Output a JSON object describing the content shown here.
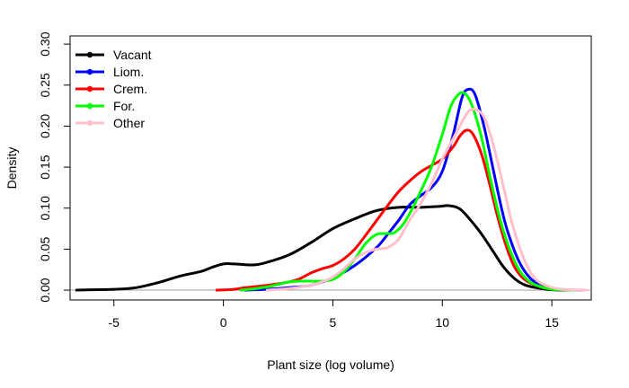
{
  "chart_data": {
    "type": "line",
    "title": "",
    "xlabel": "Plant size (log volume)",
    "ylabel": "Density",
    "xlim": [
      -7.0,
      16.8
    ],
    "ylim": [
      -0.012,
      0.31
    ],
    "x_ticks": [
      -5,
      0,
      5,
      10,
      15
    ],
    "y_ticks": [
      0.0,
      0.05,
      0.1,
      0.15,
      0.2,
      0.25,
      0.3
    ],
    "x_tick_labels": [
      "-5",
      "0",
      "5",
      "10",
      "15"
    ],
    "y_tick_labels": [
      "0.00",
      "0.05",
      "0.10",
      "0.15",
      "0.20",
      "0.25",
      "0.30"
    ],
    "reference_line_y": 0,
    "grid": false,
    "legend_position": "top-left",
    "series": [
      {
        "name": "Vacant",
        "color": "#000000",
        "x": [
          -6.7,
          -6.0,
          -5.0,
          -4.0,
          -3.0,
          -2.0,
          -1.0,
          -0.5,
          0.0,
          0.5,
          1.0,
          1.5,
          2.0,
          3.0,
          4.0,
          5.0,
          6.0,
          7.0,
          8.0,
          9.0,
          9.8,
          10.3,
          10.8,
          11.3,
          11.8,
          12.3,
          12.8,
          13.3,
          13.8,
          14.5,
          15.0,
          15.7
        ],
        "y": [
          0.0,
          0.0005,
          0.001,
          0.003,
          0.009,
          0.017,
          0.023,
          0.028,
          0.032,
          0.032,
          0.031,
          0.031,
          0.034,
          0.043,
          0.058,
          0.075,
          0.087,
          0.097,
          0.101,
          0.101,
          0.102,
          0.103,
          0.099,
          0.085,
          0.068,
          0.048,
          0.028,
          0.014,
          0.006,
          0.002,
          0.0005,
          0.0
        ]
      },
      {
        "name": "Liom.",
        "color": "#0000ff",
        "x": [
          1.0,
          2.0,
          3.0,
          4.0,
          5.0,
          6.0,
          7.0,
          7.5,
          8.0,
          8.5,
          9.0,
          9.5,
          10.0,
          10.5,
          10.9,
          11.2,
          11.5,
          11.9,
          12.3,
          12.7,
          13.0,
          13.5,
          14.0,
          14.5,
          15.0,
          15.5,
          16.5
        ],
        "y": [
          0.0,
          0.001,
          0.003,
          0.006,
          0.015,
          0.03,
          0.052,
          0.068,
          0.085,
          0.104,
          0.115,
          0.125,
          0.145,
          0.19,
          0.235,
          0.245,
          0.238,
          0.2,
          0.15,
          0.1,
          0.07,
          0.035,
          0.015,
          0.006,
          0.002,
          0.0005,
          0.0
        ]
      },
      {
        "name": "Crem.",
        "color": "#ff0000",
        "x": [
          -0.3,
          0.5,
          1.0,
          2.0,
          3.0,
          3.5,
          4.0,
          4.5,
          5.0,
          5.5,
          6.0,
          6.5,
          7.0,
          7.5,
          8.0,
          8.5,
          9.0,
          9.5,
          10.0,
          10.5,
          10.8,
          11.1,
          11.4,
          11.8,
          12.2,
          12.5,
          12.9,
          13.3,
          13.8,
          14.5,
          15.2,
          16.0
        ],
        "y": [
          0.0,
          0.001,
          0.003,
          0.006,
          0.01,
          0.014,
          0.021,
          0.026,
          0.03,
          0.038,
          0.05,
          0.067,
          0.085,
          0.103,
          0.12,
          0.133,
          0.144,
          0.152,
          0.16,
          0.175,
          0.188,
          0.195,
          0.19,
          0.165,
          0.125,
          0.092,
          0.055,
          0.028,
          0.012,
          0.004,
          0.001,
          0.0
        ]
      },
      {
        "name": "For.",
        "color": "#00ff00",
        "x": [
          0.8,
          1.5,
          2.0,
          2.5,
          3.0,
          3.5,
          4.0,
          4.5,
          5.0,
          5.5,
          6.0,
          6.5,
          7.0,
          7.5,
          7.8,
          8.2,
          8.6,
          9.0,
          9.5,
          10.0,
          10.4,
          10.8,
          11.1,
          11.4,
          11.8,
          12.2,
          12.6,
          13.0,
          13.5,
          14.0,
          14.5,
          15.0,
          16.0
        ],
        "y": [
          0.0,
          0.002,
          0.004,
          0.007,
          0.01,
          0.011,
          0.011,
          0.011,
          0.013,
          0.022,
          0.038,
          0.057,
          0.068,
          0.069,
          0.07,
          0.08,
          0.098,
          0.12,
          0.15,
          0.19,
          0.225,
          0.24,
          0.238,
          0.222,
          0.185,
          0.135,
          0.09,
          0.055,
          0.025,
          0.01,
          0.004,
          0.001,
          0.0
        ]
      },
      {
        "name": "Other",
        "color": "#ffc0cb",
        "x": [
          2.0,
          3.0,
          4.0,
          4.5,
          5.0,
          5.5,
          6.0,
          6.5,
          7.0,
          7.5,
          8.0,
          8.5,
          9.0,
          9.5,
          10.0,
          10.5,
          11.0,
          11.3,
          11.7,
          12.0,
          12.4,
          12.8,
          13.2,
          13.7,
          14.2,
          14.8,
          15.5,
          16.6
        ],
        "y": [
          0.0,
          0.002,
          0.006,
          0.01,
          0.016,
          0.026,
          0.038,
          0.046,
          0.05,
          0.052,
          0.062,
          0.085,
          0.105,
          0.13,
          0.16,
          0.185,
          0.21,
          0.22,
          0.218,
          0.205,
          0.17,
          0.125,
          0.08,
          0.04,
          0.015,
          0.005,
          0.001,
          0.0
        ]
      }
    ]
  }
}
